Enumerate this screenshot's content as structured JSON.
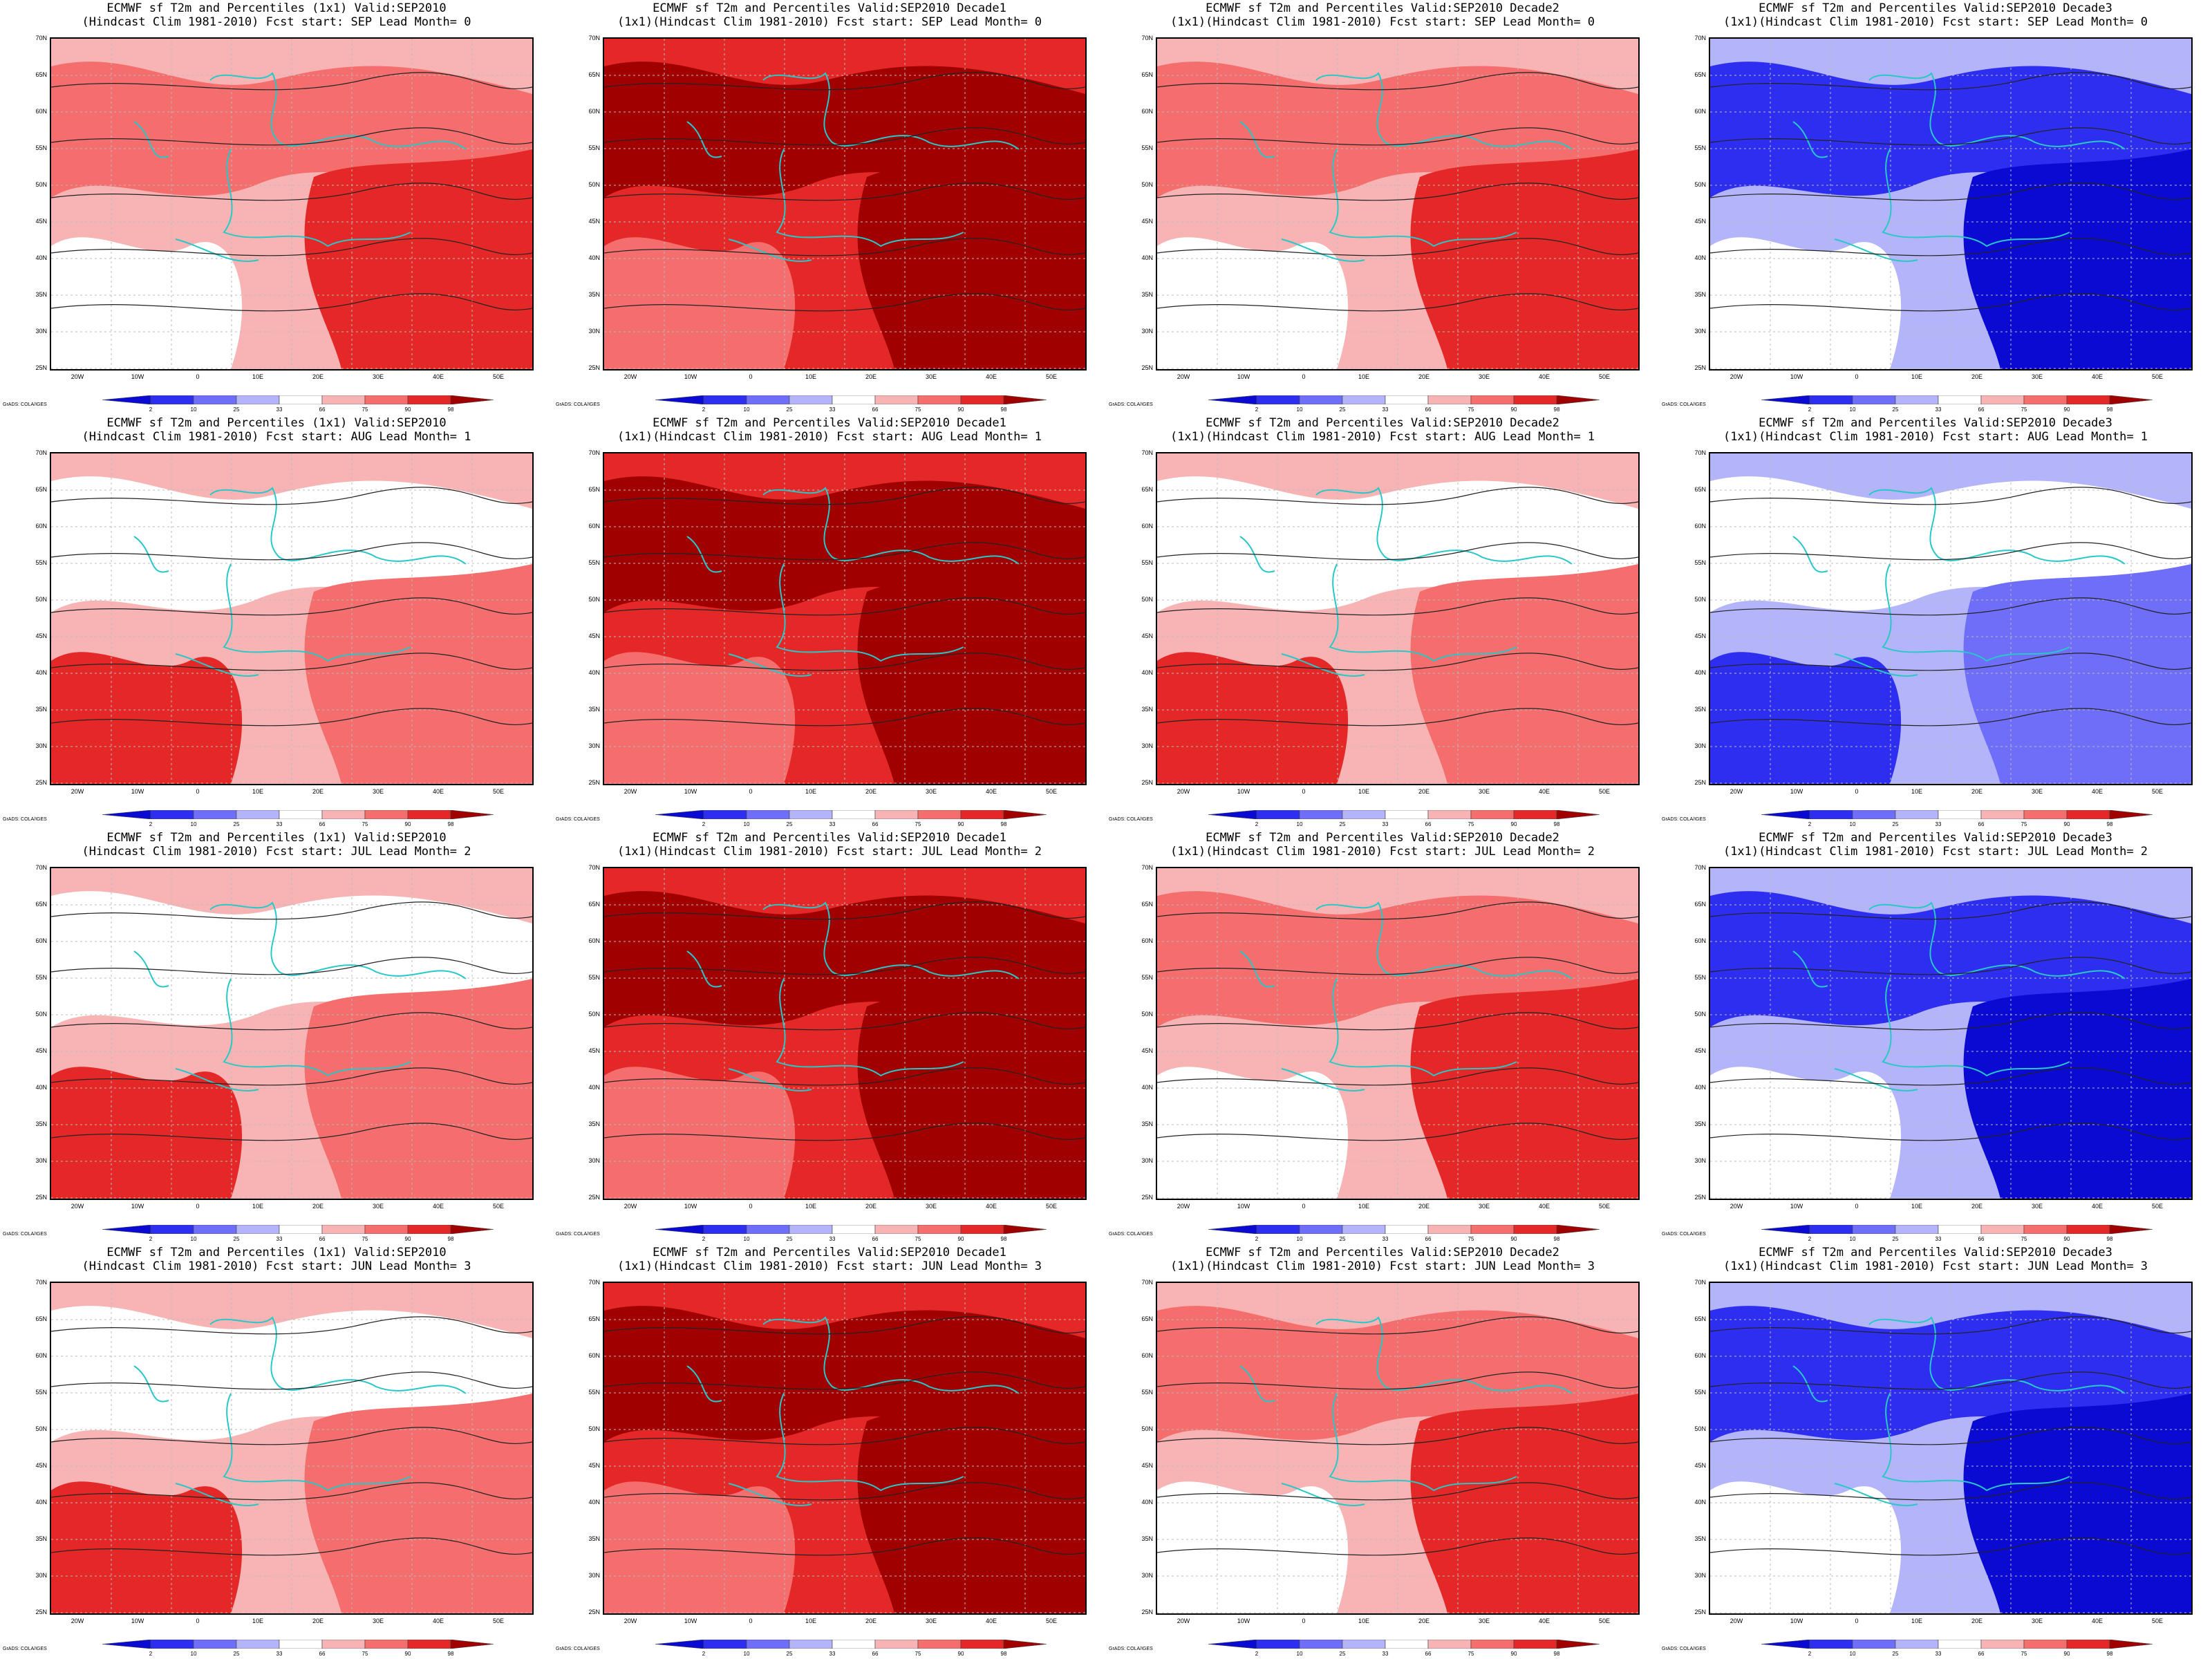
{
  "colorbar": {
    "labels": [
      "2",
      "10",
      "25",
      "33",
      "66",
      "75",
      "90",
      "98"
    ],
    "colors": [
      "#0a0ad2",
      "#2e2ef0",
      "#6e6ef8",
      "#b4b4fa",
      "#ffffff",
      "#f8b4b4",
      "#f46e6e",
      "#e42828",
      "#a00000"
    ]
  },
  "axes": {
    "lat_labels": [
      "70N",
      "65N",
      "60N",
      "55N",
      "50N",
      "45N",
      "40N",
      "35N",
      "30N",
      "25N"
    ],
    "lon_labels": [
      "20W",
      "10W",
      "0",
      "10E",
      "20E",
      "30E",
      "40E",
      "50E"
    ]
  },
  "credit": "GrADS: COLA/IGES",
  "panels": [
    {
      "title": "ECMWF sf T2m and Percentiles (1x1) Valid:SEP2010",
      "subtitle": "(Hindcast Clim 1981-2010) Fcst start: SEP  Lead Month= 0",
      "tone": "warm-moderate"
    },
    {
      "title": "ECMWF sf T2m and Percentiles Valid:SEP2010 Decade1",
      "subtitle": "(1x1)(Hindcast Clim 1981-2010) Fcst start: SEP  Lead Month= 0",
      "tone": "warm-strong"
    },
    {
      "title": "ECMWF sf T2m and Percentiles Valid:SEP2010 Decade2",
      "subtitle": "(1x1)(Hindcast Clim 1981-2010) Fcst start: SEP  Lead Month= 0",
      "tone": "warm-moderate"
    },
    {
      "title": "ECMWF sf T2m and Percentiles Valid:SEP2010 Decade3",
      "subtitle": "(1x1)(Hindcast Clim 1981-2010) Fcst start: SEP  Lead Month= 0",
      "tone": "cold"
    },
    {
      "title": "ECMWF sf T2m and Percentiles (1x1) Valid:SEP2010",
      "subtitle": "(Hindcast Clim 1981-2010) Fcst start: AUG  Lead Month= 1",
      "tone": "warm-light"
    },
    {
      "title": "ECMWF sf T2m and Percentiles Valid:SEP2010 Decade1",
      "subtitle": "(1x1)(Hindcast Clim 1981-2010) Fcst start: AUG  Lead Month= 1",
      "tone": "warm-strong"
    },
    {
      "title": "ECMWF sf T2m and Percentiles Valid:SEP2010 Decade2",
      "subtitle": "(1x1)(Hindcast Clim 1981-2010) Fcst start: AUG  Lead Month= 1",
      "tone": "warm-light"
    },
    {
      "title": "ECMWF sf T2m and Percentiles Valid:SEP2010 Decade3",
      "subtitle": "(1x1)(Hindcast Clim 1981-2010) Fcst start: AUG  Lead Month= 1",
      "tone": "cold-light"
    },
    {
      "title": "ECMWF sf T2m and Percentiles (1x1) Valid:SEP2010",
      "subtitle": "(Hindcast Clim 1981-2010) Fcst start: JUL  Lead Month= 2",
      "tone": "warm-light"
    },
    {
      "title": "ECMWF sf T2m and Percentiles Valid:SEP2010 Decade1",
      "subtitle": "(1x1)(Hindcast Clim 1981-2010) Fcst start: JUL  Lead Month= 2",
      "tone": "warm-strong"
    },
    {
      "title": "ECMWF sf T2m and Percentiles Valid:SEP2010 Decade2",
      "subtitle": "(1x1)(Hindcast Clim 1981-2010) Fcst start: JUL  Lead Month= 2",
      "tone": "warm-moderate"
    },
    {
      "title": "ECMWF sf T2m and Percentiles Valid:SEP2010 Decade3",
      "subtitle": "(1x1)(Hindcast Clim 1981-2010) Fcst start: JUL  Lead Month= 2",
      "tone": "cold"
    },
    {
      "title": "ECMWF sf T2m and Percentiles (1x1) Valid:SEP2010",
      "subtitle": "(Hindcast Clim 1981-2010) Fcst start: JUN  Lead Month= 3",
      "tone": "warm-light"
    },
    {
      "title": "ECMWF sf T2m and Percentiles Valid:SEP2010 Decade1",
      "subtitle": "(1x1)(Hindcast Clim 1981-2010) Fcst start: JUN  Lead Month= 3",
      "tone": "warm-strong"
    },
    {
      "title": "ECMWF sf T2m and Percentiles Valid:SEP2010 Decade2",
      "subtitle": "(1x1)(Hindcast Clim 1981-2010) Fcst start: JUN  Lead Month= 3",
      "tone": "warm-moderate"
    },
    {
      "title": "ECMWF sf T2m and Percentiles Valid:SEP2010 Decade3",
      "subtitle": "(1x1)(Hindcast Clim 1981-2010) Fcst start: JUN  Lead Month= 3",
      "tone": "cold"
    }
  ]
}
